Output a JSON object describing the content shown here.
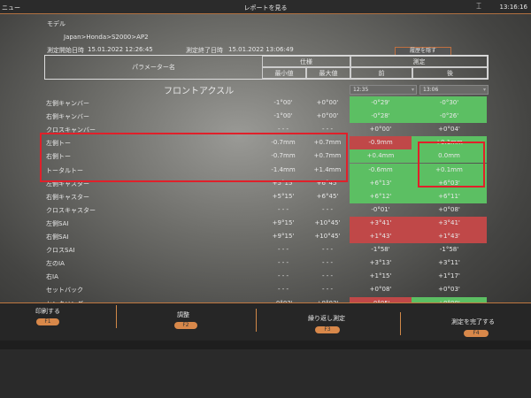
{
  "header": {
    "menu": "ニュー",
    "title": "レポートを見る",
    "time": "13:16:16"
  },
  "info": {
    "model_label": "モデル",
    "model_path": "Japan>Honda>S2000>AP2",
    "start_label": "測定開始日時",
    "start": "15.01.2022 12:26:45",
    "end_label": "測定終了日時",
    "end": "15.01.2022 13:06:49",
    "history_button": "履歴を隠す"
  },
  "table_header": {
    "param": "パラメーター名",
    "spec": "仕様",
    "measure": "測定",
    "min": "最小値",
    "max": "最大値",
    "before": "前",
    "after": "後"
  },
  "section": {
    "title": "フロントアクスル",
    "before_time": "12:35",
    "after_time": "13:06"
  },
  "rows": [
    {
      "label": "左側キャンバー",
      "min": "-1°00'",
      "max": "+0°00'",
      "before": "-0°29'",
      "after": "-0°30'",
      "bs": "g",
      "as": "g"
    },
    {
      "label": "右側キャンバー",
      "min": "-1°00'",
      "max": "+0°00'",
      "before": "-0°28'",
      "after": "-0°26'",
      "bs": "g",
      "as": "g"
    },
    {
      "label": "クロスキャンバー",
      "min": "- - -",
      "max": "- - -",
      "before": "+0°00'",
      "after": "+0°04'",
      "bs": "",
      "as": ""
    },
    {
      "label": "左側トー",
      "min": "-0.7mm",
      "max": "+0.7mm",
      "before": "-0.9mm",
      "after": "+0.1mm",
      "bs": "r",
      "as": "g"
    },
    {
      "label": "右側トー",
      "min": "-0.7mm",
      "max": "+0.7mm",
      "before": "+0.4mm",
      "after": "0.0mm",
      "bs": "g",
      "as": "g"
    },
    {
      "label": "トータルトー",
      "min": "-1.4mm",
      "max": "+1.4mm",
      "before": "-0.6mm",
      "after": "+0.1mm",
      "bs": "g",
      "as": "g"
    },
    {
      "label": "左側キャスター",
      "min": "+5°15'",
      "max": "+6°45'",
      "before": "+6°13'",
      "after": "+6°03'",
      "bs": "g",
      "as": "g"
    },
    {
      "label": "右側キャスター",
      "min": "+5°15'",
      "max": "+6°45'",
      "before": "+6°12'",
      "after": "+6°11'",
      "bs": "g",
      "as": "g"
    },
    {
      "label": "クロスキャスター",
      "min": "- - -",
      "max": "- - -",
      "before": "-0°01'",
      "after": "+0°08'",
      "bs": "",
      "as": ""
    },
    {
      "label": "左側SAI",
      "min": "+9°15'",
      "max": "+10°45'",
      "before": "+3°41'",
      "after": "+3°41'",
      "bs": "r",
      "as": "r"
    },
    {
      "label": "右側SAI",
      "min": "+9°15'",
      "max": "+10°45'",
      "before": "+1°43'",
      "after": "+1°43'",
      "bs": "r",
      "as": "r"
    },
    {
      "label": "クロスSAI",
      "min": "- - -",
      "max": "- - -",
      "before": "-1°58'",
      "after": "-1°58'",
      "bs": "",
      "as": ""
    },
    {
      "label": "左のIA",
      "min": "- - -",
      "max": "- - -",
      "before": "+3°13'",
      "after": "+3°11'",
      "bs": "",
      "as": ""
    },
    {
      "label": "右IA",
      "min": "- - -",
      "max": "- - -",
      "before": "+1°15'",
      "after": "+1°17'",
      "bs": "",
      "as": ""
    },
    {
      "label": "セットバック",
      "min": "- - -",
      "max": "- - -",
      "before": "+0°08'",
      "after": "+0°03'",
      "bs": "",
      "as": ""
    },
    {
      "label": "センタリング",
      "min": "-0°03'",
      "max": "+0°03'",
      "before": "-0°05'",
      "after": "+0°00'",
      "bs": "r",
      "as": "g"
    }
  ],
  "footer": {
    "f1_label": "印刷する",
    "f1": "F1",
    "f2_label": "調整",
    "f2": "F2",
    "f3_label": "繰り返し測定",
    "f3": "F3",
    "f4_label": "測定を完了する",
    "f4": "F4"
  },
  "colors": {
    "ok": "#5cbf63",
    "ng": "#c04848",
    "accent": "#d8884a",
    "annotation": "#e0202a"
  }
}
